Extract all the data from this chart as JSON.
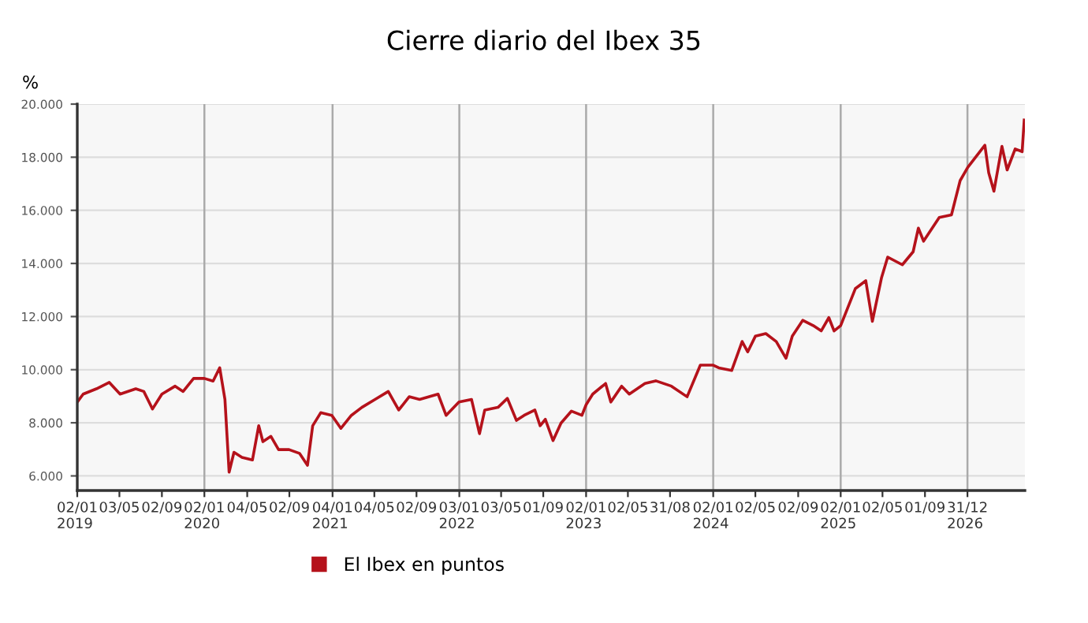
{
  "chart_data": {
    "type": "line",
    "title": "Cierre diario del Ibex 35",
    "ylabel": "%",
    "x": [
      "2019-01-02",
      "2019-01-19",
      "2019-02-26",
      "2019-04-04",
      "2019-05-05",
      "2019-06-19",
      "2019-07-12",
      "2019-08-06",
      "2019-09-02",
      "2019-10-10",
      "2019-11-02",
      "2019-12-02",
      "2020-01-02",
      "2020-01-27",
      "2020-02-15",
      "2020-03-01",
      "2020-03-13",
      "2020-03-27",
      "2020-04-19",
      "2020-05-19",
      "2020-06-06",
      "2020-06-18",
      "2020-07-11",
      "2020-08-02",
      "2020-09-01",
      "2020-10-01",
      "2020-10-24",
      "2020-11-08",
      "2020-12-01",
      "2021-01-02",
      "2021-01-28",
      "2021-02-27",
      "2021-03-29",
      "2021-05-06",
      "2021-06-13",
      "2021-07-13",
      "2021-08-12",
      "2021-09-11",
      "2021-11-03",
      "2021-11-26",
      "2022-01-02",
      "2022-02-07",
      "2022-03-02",
      "2022-03-17",
      "2022-04-24",
      "2022-05-21",
      "2022-06-16",
      "2022-07-08",
      "2022-08-08",
      "2022-08-23",
      "2022-09-07",
      "2022-09-29",
      "2022-10-22",
      "2022-11-21",
      "2022-12-21",
      "2023-01-02",
      "2023-01-21",
      "2023-02-27",
      "2023-03-14",
      "2023-04-14",
      "2023-05-06",
      "2023-06-20",
      "2023-07-21",
      "2023-09-04",
      "2023-10-19",
      "2023-11-26",
      "2024-01-02",
      "2024-01-18",
      "2024-02-24",
      "2024-03-25",
      "2024-04-10",
      "2024-05-02",
      "2024-06-01",
      "2024-07-01",
      "2024-07-29",
      "2024-08-16",
      "2024-09-15",
      "2024-10-15",
      "2024-11-07",
      "2024-11-29",
      "2024-12-14",
      "2025-01-02",
      "2025-02-13",
      "2025-03-15",
      "2025-04-03",
      "2025-04-29",
      "2025-05-17",
      "2025-06-28",
      "2025-07-29",
      "2025-08-13",
      "2025-08-28",
      "2025-10-12",
      "2025-11-16",
      "2025-12-11",
      "2026-01-02",
      "2026-02-20",
      "2026-03-03",
      "2026-03-18",
      "2026-04-10",
      "2026-04-25",
      "2026-05-18",
      "2026-06-07",
      "2026-06-13"
    ],
    "series": [
      {
        "name": "El Ibex en puntos",
        "color": "#b5121b",
        "values": [
          8780,
          9080,
          9280,
          9520,
          9080,
          9280,
          9180,
          8520,
          9080,
          9380,
          9180,
          9670,
          9670,
          9570,
          10070,
          8880,
          6140,
          6890,
          6700,
          6600,
          7890,
          7290,
          7490,
          6990,
          6990,
          6850,
          6400,
          7890,
          8380,
          8280,
          7790,
          8280,
          8580,
          8880,
          9180,
          8480,
          8980,
          8880,
          9080,
          8280,
          8780,
          8880,
          7590,
          8480,
          8580,
          8920,
          8090,
          8280,
          8480,
          7890,
          8130,
          7330,
          7990,
          8440,
          8280,
          8680,
          9080,
          9480,
          8780,
          9380,
          9080,
          9480,
          9580,
          9380,
          8980,
          10170,
          10170,
          10070,
          9970,
          11060,
          10670,
          11260,
          11360,
          11060,
          10430,
          11260,
          11860,
          11660,
          11460,
          11960,
          11460,
          11660,
          13050,
          13350,
          11820,
          13450,
          14240,
          13950,
          14440,
          15330,
          14840,
          15730,
          15830,
          17120,
          17620,
          18450,
          17420,
          16720,
          18410,
          17520,
          18310,
          18210,
          19400
        ]
      }
    ],
    "xlim": [
      "2019-01-02",
      "2026-06-15"
    ],
    "xticks": [
      {
        "value": "2019-01-02",
        "label": "02/01\n2019"
      },
      {
        "value": "2019-05-03",
        "label": "03/05"
      },
      {
        "value": "2019-09-02",
        "label": "02/09"
      },
      {
        "value": "2020-01-02",
        "label": "02/01\n2020"
      },
      {
        "value": "2020-05-04",
        "label": "04/05"
      },
      {
        "value": "2020-09-02",
        "label": "02/09"
      },
      {
        "value": "2021-01-04",
        "label": "04/01\n2021"
      },
      {
        "value": "2021-05-04",
        "label": "04/05"
      },
      {
        "value": "2021-09-02",
        "label": "02/09"
      },
      {
        "value": "2022-01-03",
        "label": "03/01\n2022"
      },
      {
        "value": "2022-05-03",
        "label": "03/05"
      },
      {
        "value": "2022-09-01",
        "label": "01/09"
      },
      {
        "value": "2023-01-02",
        "label": "02/01\n2023"
      },
      {
        "value": "2023-05-02",
        "label": "02/05"
      },
      {
        "value": "2023-08-31",
        "label": "31/08"
      },
      {
        "value": "2024-01-02",
        "label": "02/01\n2024"
      },
      {
        "value": "2024-05-02",
        "label": "02/05"
      },
      {
        "value": "2024-09-02",
        "label": "02/09"
      },
      {
        "value": "2025-01-02",
        "label": "02/01\n2025"
      },
      {
        "value": "2025-05-02",
        "label": "02/05"
      },
      {
        "value": "2025-09-01",
        "label": "01/09"
      },
      {
        "value": "2026-01-01",
        "label": "31/12\n2026"
      }
    ],
    "ylim": [
      5450,
      20000
    ],
    "yticks": [
      {
        "value": 6000,
        "label": "6.000"
      },
      {
        "value": 8000,
        "label": "8.000"
      },
      {
        "value": 10000,
        "label": "10.000"
      },
      {
        "value": 12000,
        "label": "12.000"
      },
      {
        "value": 14000,
        "label": "14.000"
      },
      {
        "value": 16000,
        "label": "16.000"
      },
      {
        "value": 18000,
        "label": "18.000"
      },
      {
        "value": 20000,
        "label": "20.000"
      }
    ],
    "grid": true,
    "legend": "bottom"
  }
}
